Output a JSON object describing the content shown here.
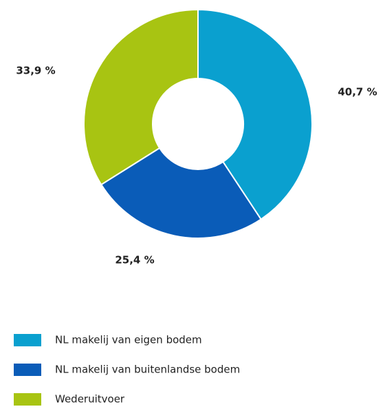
{
  "chart_data": {
    "type": "donut",
    "categories": [
      "NL makelij van eigen bodem",
      "NL makelij van buitenlandse bodem",
      "Wederuitvoer"
    ],
    "values": [
      40.7,
      25.4,
      33.9
    ],
    "value_labels": [
      "40,7 %",
      "25,4 %",
      "33,9 %"
    ],
    "colors": [
      "#0aa0cf",
      "#0a5cb8",
      "#a8c412"
    ]
  }
}
